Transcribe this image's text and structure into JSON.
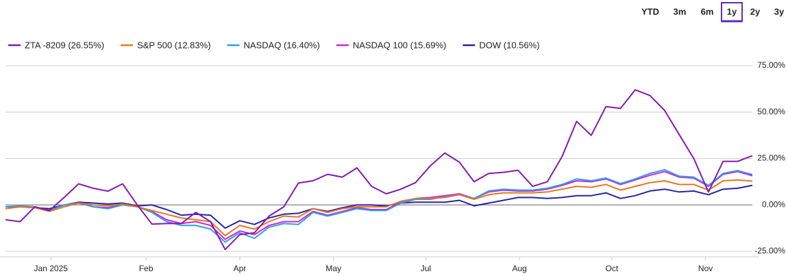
{
  "range_buttons": [
    "YTD",
    "3m",
    "6m",
    "1y",
    "2y",
    "3y"
  ],
  "selected_range": 3,
  "chart_data": {
    "type": "line",
    "x": [
      0,
      1,
      2,
      3,
      4,
      5,
      6,
      7,
      8,
      9,
      10,
      11,
      12,
      13,
      14,
      15,
      16,
      17,
      18,
      19,
      20,
      21,
      22,
      23,
      24,
      25,
      26,
      27,
      28,
      29,
      30,
      31,
      32,
      33,
      34,
      35,
      36,
      37,
      38,
      39,
      40,
      41,
      42,
      43,
      44,
      45,
      46,
      47,
      48,
      49,
      50,
      51
    ],
    "xlim": [
      0,
      51
    ],
    "xticks": [
      {
        "value": 3.1,
        "label": "Jan 2025"
      },
      {
        "value": 9.6,
        "label": "Feb"
      },
      {
        "value": 16,
        "label": "Apr"
      },
      {
        "value": 22.4,
        "label": "May"
      },
      {
        "value": 28.7,
        "label": "Jul"
      },
      {
        "value": 35.1,
        "label": "Aug"
      },
      {
        "value": 41.4,
        "label": "Oct"
      },
      {
        "value": 47.8,
        "label": "Nov"
      }
    ],
    "ylim": [
      -25,
      75
    ],
    "yticks": [
      {
        "value": 75,
        "label": "75.00%"
      },
      {
        "value": 50,
        "label": "50.00%"
      },
      {
        "value": 25,
        "label": "25.00%"
      },
      {
        "value": 0,
        "label": "0.00%"
      },
      {
        "value": -25,
        "label": "-25.00%"
      }
    ],
    "grid": true,
    "legend": "top-left",
    "series": [
      {
        "name": "ZTA -8209 (26.55%)",
        "color": "#8219b0",
        "values": [
          -8,
          -9,
          -1,
          -3,
          4,
          11.4,
          9,
          7.4,
          11.4,
          0,
          -10.3,
          -10,
          -10,
          -4,
          -9,
          -24,
          -16,
          -15,
          -6,
          -1,
          11.8,
          13,
          16.5,
          15,
          20,
          10,
          6,
          8.5,
          12,
          21,
          28,
          23,
          12.5,
          17,
          17.6,
          18.7,
          10,
          12.5,
          26,
          45,
          37.5,
          53,
          52,
          62,
          59,
          51,
          38,
          25,
          7,
          23.5,
          23.5,
          26.55
        ]
      },
      {
        "name": "S&P 500 (12.83%)",
        "color": "#e8761e",
        "values": [
          -2,
          -1,
          -1.5,
          -3.5,
          -1,
          1,
          0,
          -0.5,
          0.5,
          -1,
          -3,
          -5,
          -7,
          -8,
          -9,
          -16.5,
          -11,
          -13,
          -9,
          -6,
          -6.5,
          -2,
          -4,
          -2,
          -1,
          -1,
          -1,
          2,
          3.5,
          3.5,
          4,
          5.5,
          3,
          5.5,
          6.5,
          6.5,
          6.5,
          7,
          8.5,
          10,
          9.5,
          11,
          8,
          10,
          12,
          13,
          11,
          11,
          8,
          13,
          13.5,
          12.83
        ]
      },
      {
        "name": "NASDAQ (16.40%)",
        "color": "#2aa0e6",
        "values": [
          -1,
          -0.5,
          -1,
          -3,
          0,
          1,
          -1,
          -2,
          0,
          -1,
          -4,
          -9,
          -11,
          -11,
          -13,
          -20,
          -15,
          -18,
          -12,
          -10,
          -10.5,
          -4,
          -6,
          -4,
          -2,
          -3,
          -3,
          1,
          3,
          3,
          4.5,
          5.5,
          3.5,
          7.5,
          8.5,
          8,
          8,
          9,
          11,
          14,
          13,
          14.5,
          11.5,
          14,
          17,
          19,
          15.5,
          15,
          10.5,
          17,
          18.5,
          16.4
        ]
      },
      {
        "name": "NASDAQ 100 (15.69%)",
        "color": "#d424d0",
        "values": [
          -1,
          -0.5,
          -1,
          -3,
          0,
          1,
          -1,
          -1.5,
          0.5,
          -1,
          -3.5,
          -8,
          -10,
          -9,
          -11,
          -18.5,
          -14,
          -16,
          -11,
          -9,
          -9,
          -3.5,
          -5.5,
          -3.5,
          -1.5,
          -2.5,
          -2.5,
          1.5,
          3.5,
          4,
          5,
          6,
          3.5,
          7,
          8,
          7.5,
          7.5,
          8.5,
          10.5,
          13,
          12.5,
          14,
          11,
          13.5,
          16,
          18,
          15,
          14.5,
          10,
          16.5,
          18,
          15.69
        ]
      },
      {
        "name": "DOW (10.56%)",
        "color": "#2424a4",
        "values": [
          -1,
          -1,
          -1.5,
          -2,
          0,
          1.5,
          1,
          0.5,
          1,
          -0.5,
          0,
          -2.5,
          -5.5,
          -5,
          -5.5,
          -12.5,
          -8.5,
          -10.5,
          -7,
          -5,
          -4.5,
          -2,
          -3.5,
          -1.5,
          0,
          0,
          -0.5,
          1,
          1.5,
          1.5,
          1.5,
          2.5,
          -0.5,
          1,
          2.5,
          4,
          4,
          3.5,
          4,
          5,
          5,
          6.5,
          3.5,
          5,
          7.5,
          8.5,
          7,
          7.5,
          5.5,
          8.5,
          9,
          10.56
        ]
      }
    ]
  }
}
